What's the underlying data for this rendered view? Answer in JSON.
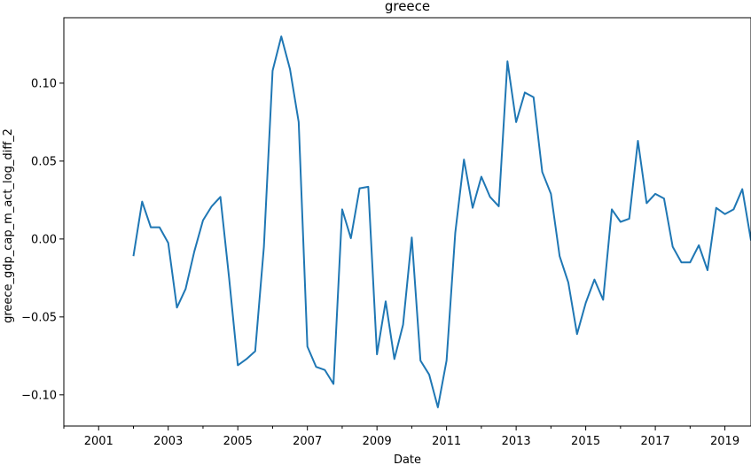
{
  "chart_data": {
    "type": "line",
    "title": "greece",
    "xlabel": "Date",
    "ylabel": "greece_gdp_cap_m_act_log_diff_2",
    "x_tick_labels": [
      "2001",
      "2003",
      "2005",
      "2007",
      "2009",
      "2011",
      "2013",
      "2015",
      "2017",
      "2019"
    ],
    "y_tick_labels": [
      "−0.10",
      "−0.05",
      "0.00",
      "0.05",
      "0.10"
    ],
    "y_tick_values": [
      -0.1,
      -0.05,
      0.0,
      0.05,
      0.1
    ],
    "xlim": [
      2000,
      2019.75
    ],
    "ylim": [
      -0.12,
      0.142
    ],
    "grid": false,
    "color": "#1f77b4",
    "series": [
      {
        "x": [
          2002.0,
          2002.25,
          2002.5,
          2002.75,
          2003.0,
          2003.25,
          2003.5,
          2003.75,
          2004.0,
          2004.25,
          2004.5,
          2004.75,
          2005.0,
          2005.25,
          2005.5,
          2005.75,
          2006.0,
          2006.25,
          2006.5,
          2006.75,
          2007.0,
          2007.25,
          2007.5,
          2007.75,
          2008.0,
          2008.25,
          2008.5,
          2008.75,
          2009.0,
          2009.25,
          2009.5,
          2009.75,
          2010.0,
          2010.25,
          2010.5,
          2010.75,
          2011.0,
          2011.25,
          2011.5,
          2011.75,
          2012.0,
          2012.25,
          2012.5,
          2012.75,
          2013.0,
          2013.25,
          2013.5,
          2013.75,
          2014.0,
          2014.25,
          2014.5,
          2014.75,
          2015.0,
          2015.25,
          2015.5,
          2015.75,
          2016.0,
          2016.25,
          2016.5,
          2016.75,
          2017.0,
          2017.25,
          2017.5,
          2017.75,
          2018.0,
          2018.25,
          2018.5,
          2018.75,
          2019.0,
          2019.25,
          2019.5,
          2019.75
        ],
        "values": [
          -0.011,
          0.024,
          0.0075,
          0.0075,
          -0.0025,
          -0.044,
          -0.032,
          -0.008,
          0.012,
          0.021,
          0.027,
          -0.025,
          -0.081,
          -0.077,
          -0.072,
          -0.005,
          0.108,
          0.13,
          0.109,
          0.075,
          -0.069,
          -0.082,
          -0.084,
          -0.093,
          0.019,
          0.0005,
          0.0325,
          0.0335,
          -0.074,
          -0.04,
          -0.077,
          -0.055,
          0.001,
          -0.078,
          -0.087,
          -0.108,
          -0.078,
          0.004,
          0.051,
          0.02,
          0.04,
          0.027,
          0.021,
          0.114,
          0.075,
          0.094,
          0.091,
          0.043,
          0.029,
          -0.011,
          -0.028,
          -0.061,
          -0.041,
          -0.026,
          -0.039,
          0.019,
          0.011,
          0.013,
          0.063,
          0.023,
          0.029,
          0.026,
          -0.005,
          -0.015,
          -0.015,
          -0.004,
          -0.02,
          0.02,
          0.016,
          0.019,
          0.032,
          -0.001
        ]
      }
    ]
  }
}
